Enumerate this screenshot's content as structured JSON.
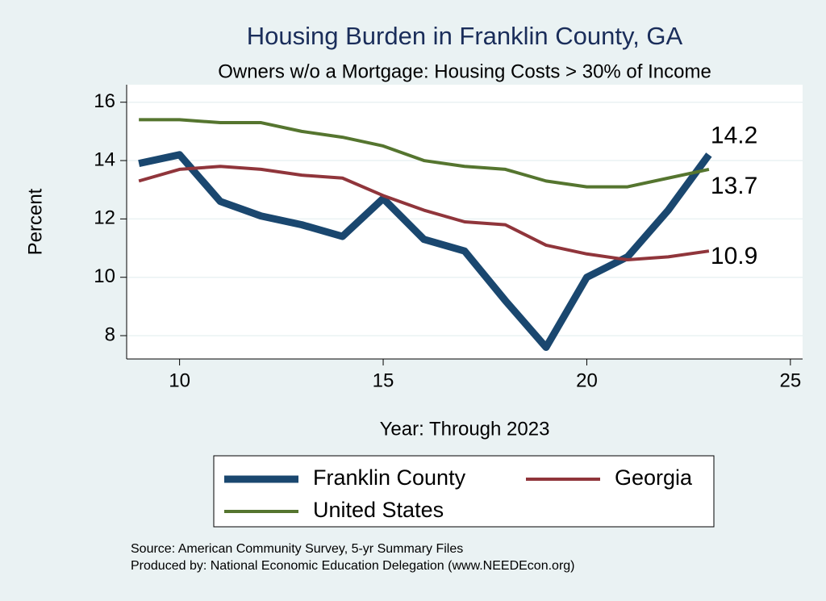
{
  "chart_data": {
    "type": "line",
    "title": "Housing Burden in Franklin County, GA",
    "subtitle": "Owners w/o a Mortgage: Housing Costs > 30% of Income",
    "x_label": "Year: Through 2023",
    "y_label": "Percent",
    "x": [
      9,
      10,
      11,
      12,
      13,
      14,
      15,
      16,
      17,
      18,
      19,
      20,
      21,
      22,
      23
    ],
    "series": [
      {
        "name": "Franklin County",
        "color": "#1a476f",
        "values": [
          13.9,
          14.2,
          12.6,
          12.1,
          11.8,
          11.4,
          12.7,
          11.3,
          10.9,
          9.2,
          7.6,
          10.0,
          10.7,
          12.3,
          14.2
        ]
      },
      {
        "name": "Georgia",
        "color": "#90353b",
        "values": [
          13.3,
          13.7,
          13.8,
          13.7,
          13.5,
          13.4,
          12.8,
          12.3,
          11.9,
          11.8,
          11.1,
          10.8,
          10.6,
          10.7,
          10.9
        ]
      },
      {
        "name": "United States",
        "color": "#55752f",
        "values": [
          15.4,
          15.4,
          15.3,
          15.3,
          15.0,
          14.8,
          14.5,
          14.0,
          13.8,
          13.7,
          13.3,
          13.1,
          13.1,
          13.4,
          13.7
        ]
      }
    ],
    "xlim": [
      8.7,
      25.3
    ],
    "xticks": [
      10,
      15,
      20,
      25
    ],
    "ylim": [
      7.2,
      16.6
    ],
    "yticks": [
      8,
      10,
      12,
      14,
      16
    ],
    "grid": true,
    "notes": [
      "Source: American Community Survey, 5-yr Summary Files",
      "Produced by: National Economic Education Delegation (www.NEEDEcon.org)"
    ]
  }
}
